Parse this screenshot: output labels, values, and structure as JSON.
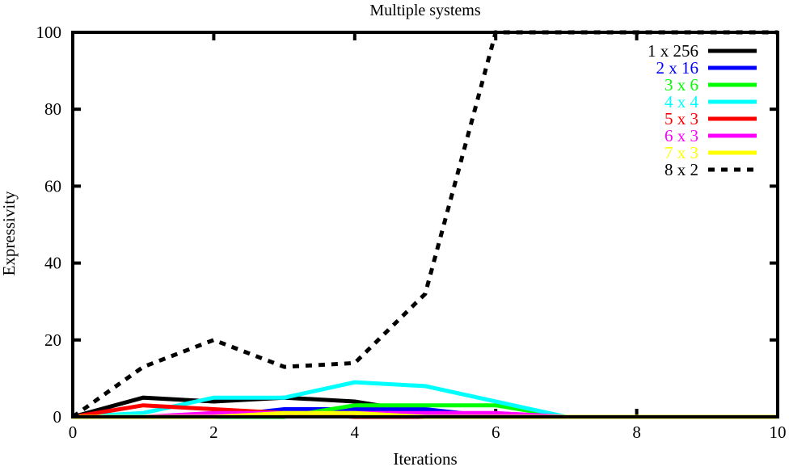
{
  "chart_data": {
    "type": "line",
    "title": "Multiple systems",
    "xlabel": "Iterations",
    "ylabel": "Expressivity",
    "xlim": [
      0,
      10
    ],
    "ylim": [
      0,
      100
    ],
    "xticks": [
      0,
      2,
      4,
      6,
      8,
      10
    ],
    "yticks": [
      0,
      20,
      40,
      60,
      80,
      100
    ],
    "grid": false,
    "legend_position": "top-right",
    "x": [
      0,
      1,
      2,
      3,
      4,
      5,
      6,
      7,
      8,
      9,
      10
    ],
    "series": [
      {
        "name": "1 x 256",
        "color": "#000000",
        "dash": "solid",
        "values": [
          0,
          5,
          4,
          5,
          4,
          1,
          0,
          0,
          0,
          0,
          0
        ]
      },
      {
        "name": "2 x 16",
        "color": "#0000ff",
        "dash": "solid",
        "values": [
          0,
          0,
          0,
          2,
          2,
          2,
          0,
          0,
          0,
          0,
          0
        ]
      },
      {
        "name": "3 x 6",
        "color": "#00ff00",
        "dash": "solid",
        "values": [
          0,
          0,
          0,
          0,
          3,
          3,
          3,
          0,
          0,
          0,
          0
        ]
      },
      {
        "name": "4 x 4",
        "color": "#00ffff",
        "dash": "solid",
        "values": [
          0,
          1,
          5,
          5,
          9,
          8,
          4,
          0,
          0,
          0,
          0
        ]
      },
      {
        "name": "5 x 3",
        "color": "#ff0000",
        "dash": "solid",
        "values": [
          0,
          3,
          2,
          1,
          0,
          0,
          0,
          0,
          0,
          0,
          0
        ]
      },
      {
        "name": "6 x 3",
        "color": "#ff00ff",
        "dash": "solid",
        "values": [
          0,
          0,
          1,
          1,
          1,
          1,
          1,
          0,
          0,
          0,
          0
        ]
      },
      {
        "name": "7 x 3",
        "color": "#ffff00",
        "dash": "solid",
        "values": [
          0,
          0,
          0,
          1,
          1,
          0,
          0,
          0,
          0,
          0,
          0
        ]
      },
      {
        "name": "8 x 2",
        "color": "#000000",
        "dash": "dotted",
        "values": [
          0,
          13,
          20,
          13,
          14,
          32,
          100,
          100,
          100,
          100,
          100
        ]
      }
    ]
  }
}
